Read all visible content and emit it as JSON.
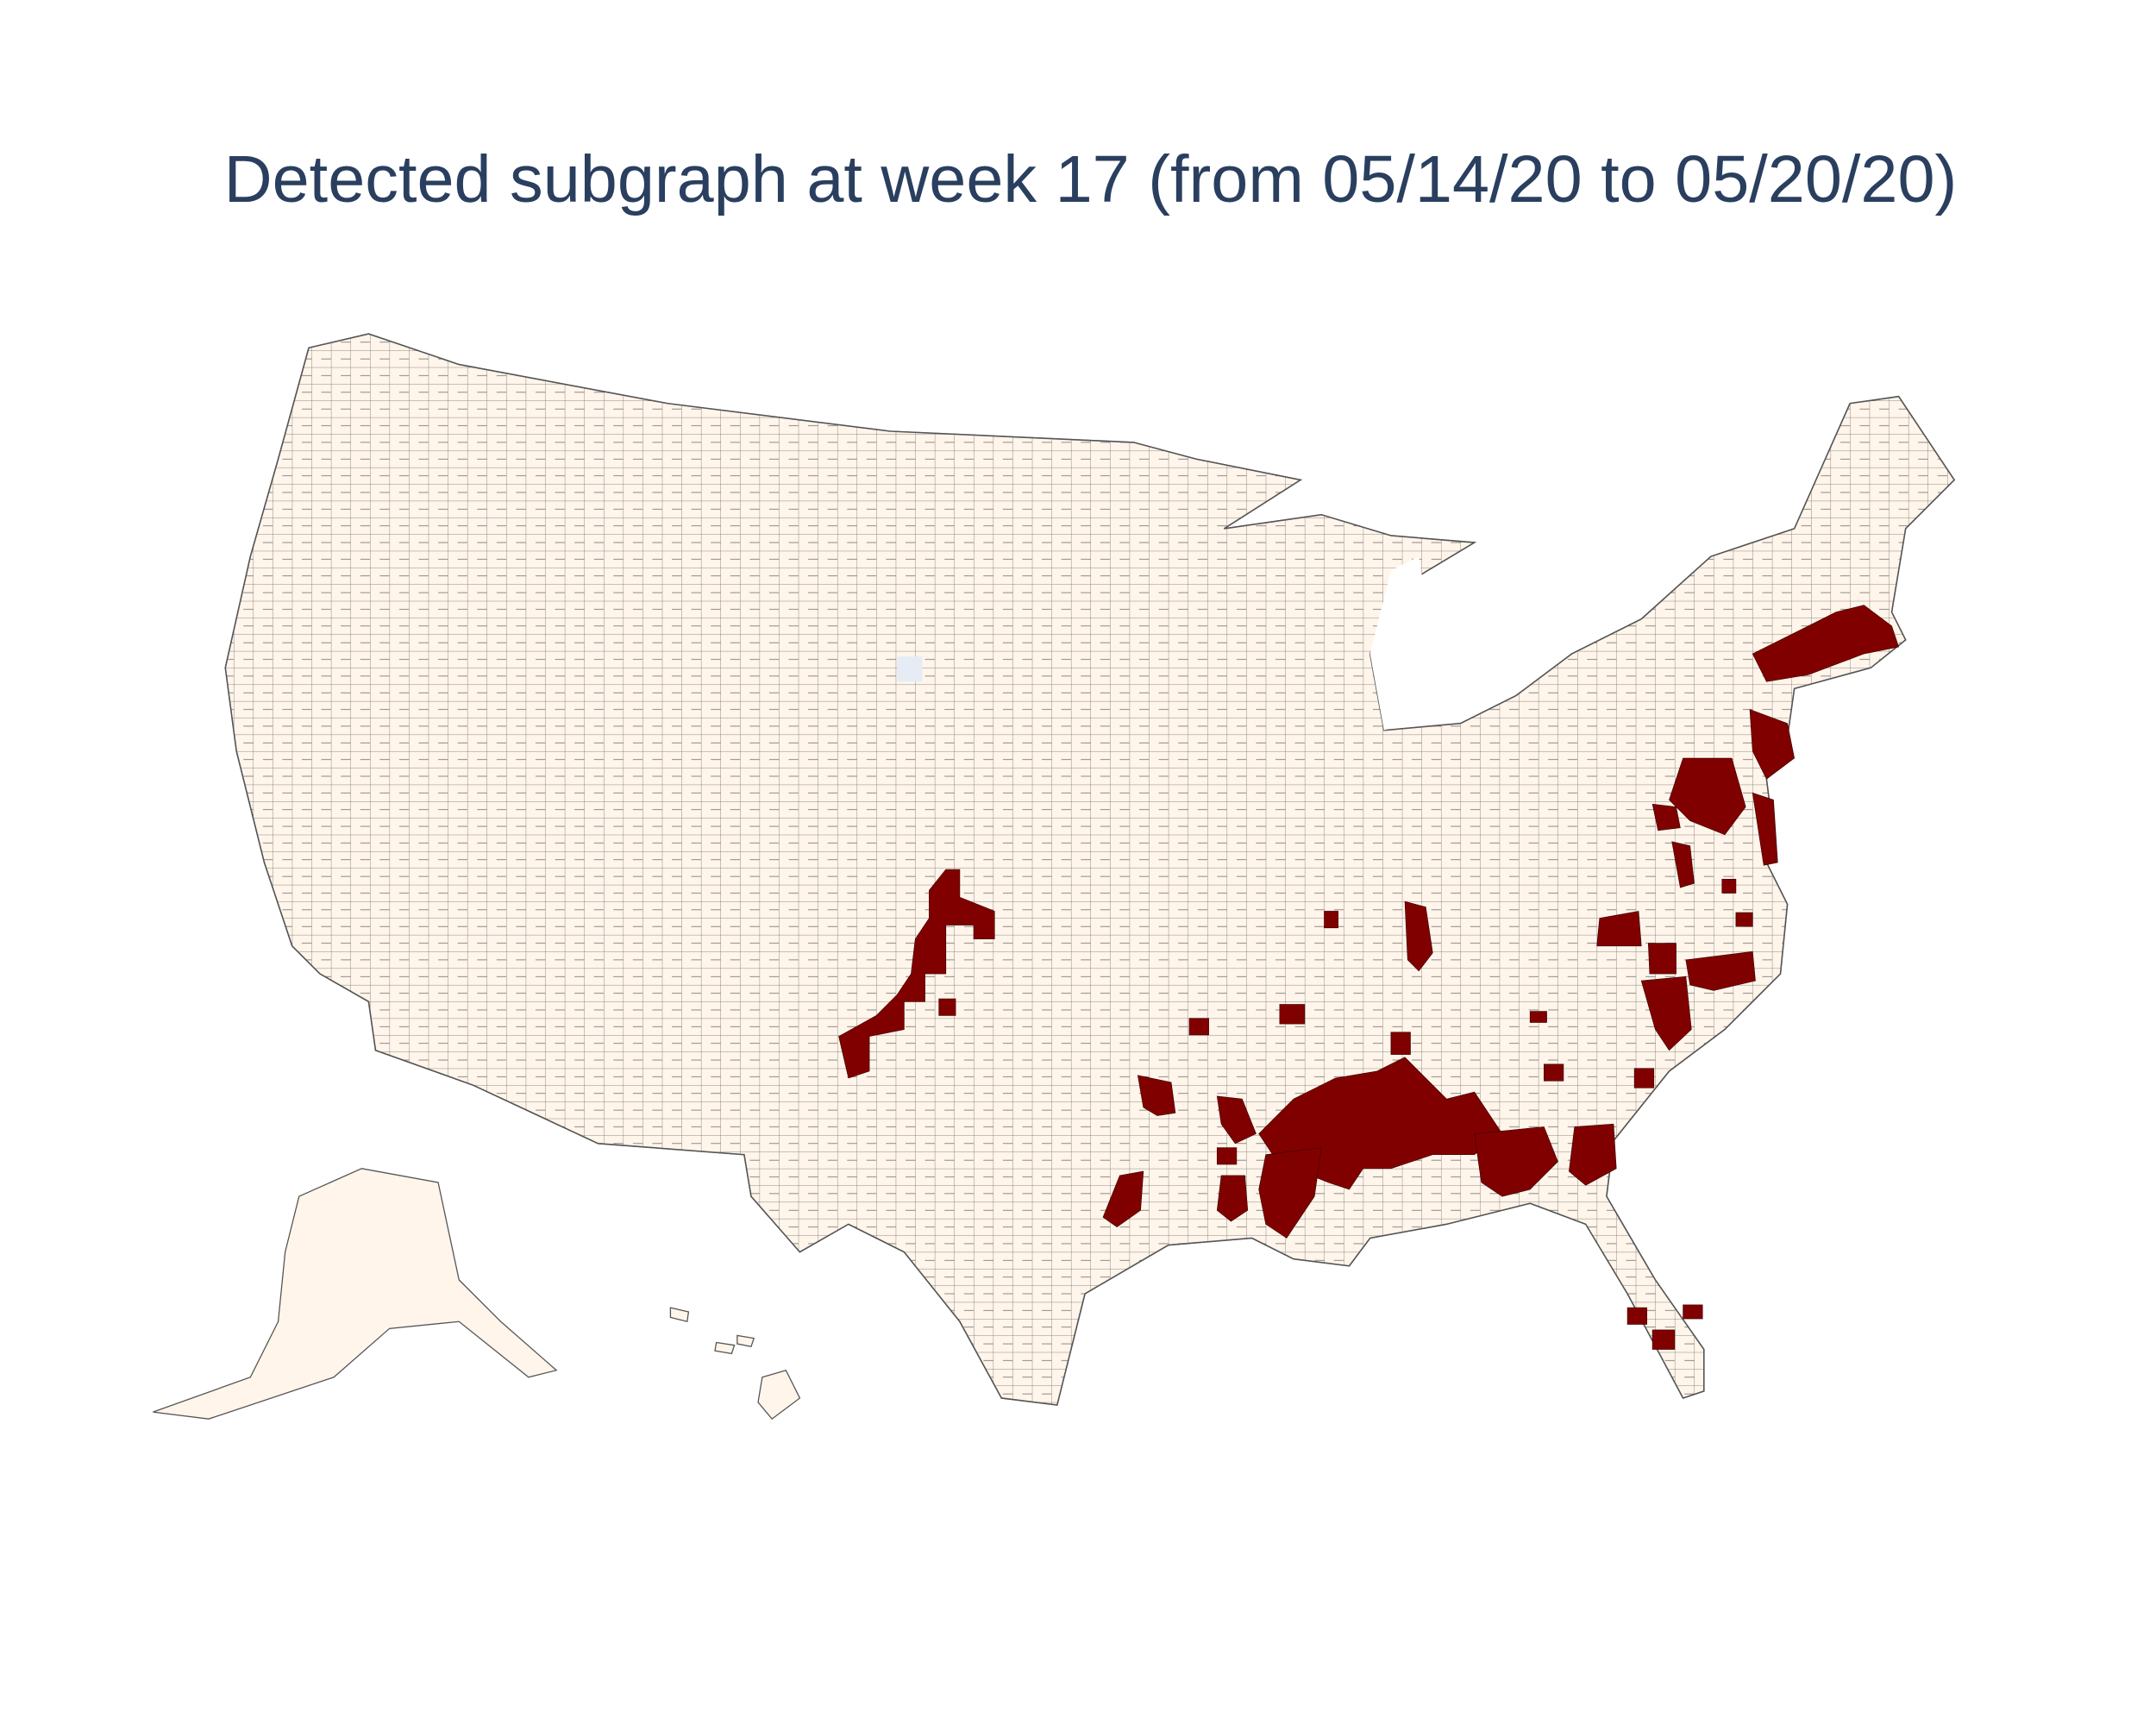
{
  "title": "Detected subgraph at week 17 (from 05/14/20 to 05/20/20)"
}
